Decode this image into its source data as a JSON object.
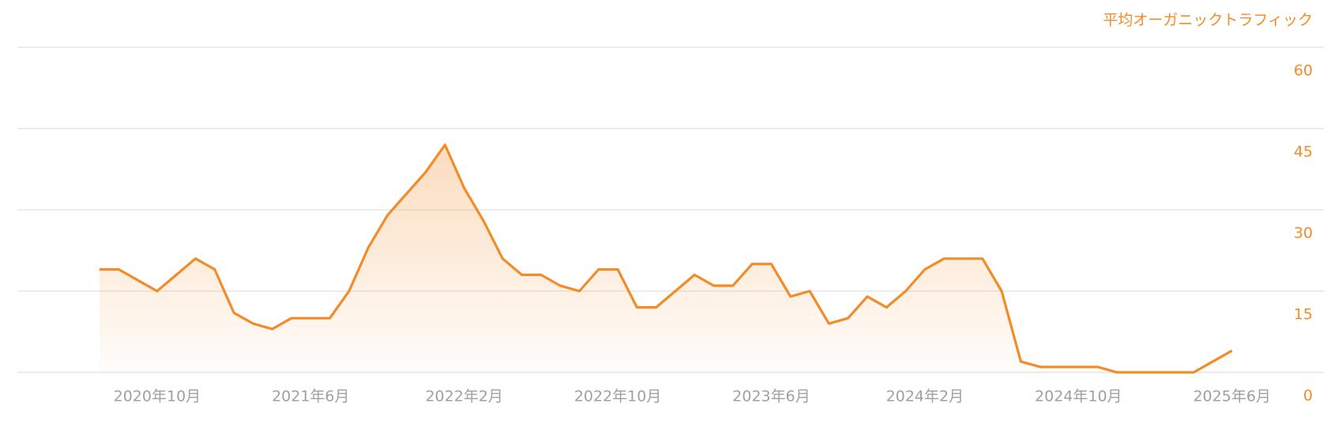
{
  "chart_data": {
    "type": "line",
    "title": "平均オーガニックトラフィック",
    "categories": [
      null,
      null,
      null,
      "2020年10月",
      null,
      null,
      null,
      null,
      null,
      null,
      null,
      "2021年6月",
      null,
      null,
      null,
      null,
      null,
      null,
      null,
      "2022年2月",
      null,
      null,
      null,
      null,
      null,
      null,
      null,
      "2022年10月",
      null,
      null,
      null,
      null,
      null,
      null,
      null,
      "2023年6月",
      null,
      null,
      null,
      null,
      null,
      null,
      null,
      "2024年2月",
      null,
      null,
      null,
      null,
      null,
      null,
      null,
      "2024年10月",
      null,
      null,
      null,
      null,
      null,
      null,
      null,
      "2025年6月"
    ],
    "series": [
      {
        "color": "#f28c28",
        "values": [
          19,
          19,
          17,
          15,
          18,
          21,
          19,
          11,
          9,
          8,
          10,
          10,
          10,
          15,
          23,
          29,
          33,
          37,
          42,
          34,
          28,
          21,
          18,
          18,
          16,
          15,
          19,
          19,
          12,
          12,
          15,
          18,
          16,
          16,
          20,
          20,
          14,
          15,
          9,
          10,
          14,
          12,
          15,
          19,
          21,
          21,
          21,
          15,
          2,
          1,
          1,
          1,
          1,
          0,
          0,
          0,
          0,
          0,
          2,
          4
        ]
      }
    ],
    "ylim": [
      0,
      60
    ],
    "yticks": [
      0,
      15,
      30,
      45,
      60
    ],
    "grid": true
  }
}
